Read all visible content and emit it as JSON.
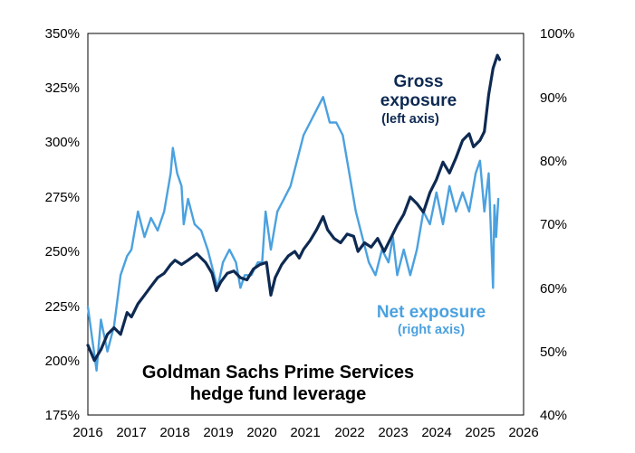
{
  "chart_data": {
    "type": "line",
    "caption": [
      "Goldman Sachs Prime Services",
      "hedge fund leverage"
    ],
    "x_ticks": [
      "2016",
      "2017",
      "2018",
      "2019",
      "2020",
      "2021",
      "2022",
      "2023",
      "2024",
      "2025",
      "2026"
    ],
    "xlim": [
      2016,
      2026
    ],
    "y_left": {
      "ylim": [
        175,
        350
      ],
      "ticks": [
        "175%",
        "200%",
        "225%",
        "250%",
        "275%",
        "300%",
        "325%",
        "350%"
      ],
      "tick_values": [
        175,
        200,
        225,
        250,
        275,
        300,
        325,
        350
      ]
    },
    "y_right": {
      "ylim": [
        40,
        100
      ],
      "ticks": [
        "40%",
        "50%",
        "60%",
        "70%",
        "80%",
        "90%",
        "100%"
      ],
      "tick_values": [
        40,
        50,
        60,
        70,
        80,
        90,
        100
      ]
    },
    "grid": false,
    "legend": "none",
    "series": [
      {
        "name": "Gross exposure",
        "annotation": [
          "Gross",
          "exposure",
          "(left axis)"
        ],
        "axis": "left",
        "color": "#0e2a52",
        "points": [
          [
            2016.0,
            207
          ],
          [
            2016.15,
            200
          ],
          [
            2016.3,
            205
          ],
          [
            2016.45,
            212
          ],
          [
            2016.6,
            215
          ],
          [
            2016.75,
            212
          ],
          [
            2016.9,
            222
          ],
          [
            2017.0,
            220
          ],
          [
            2017.15,
            226
          ],
          [
            2017.3,
            230
          ],
          [
            2017.45,
            234
          ],
          [
            2017.6,
            238
          ],
          [
            2017.75,
            240
          ],
          [
            2017.9,
            244
          ],
          [
            2018.0,
            246
          ],
          [
            2018.15,
            244
          ],
          [
            2018.3,
            246
          ],
          [
            2018.5,
            249
          ],
          [
            2018.7,
            245
          ],
          [
            2018.85,
            240
          ],
          [
            2018.95,
            232
          ],
          [
            2019.05,
            236
          ],
          [
            2019.2,
            240
          ],
          [
            2019.35,
            241
          ],
          [
            2019.5,
            238
          ],
          [
            2019.65,
            237
          ],
          [
            2019.8,
            242
          ],
          [
            2019.95,
            244
          ],
          [
            2020.1,
            245
          ],
          [
            2020.2,
            230
          ],
          [
            2020.3,
            238
          ],
          [
            2020.45,
            244
          ],
          [
            2020.6,
            248
          ],
          [
            2020.75,
            250
          ],
          [
            2020.85,
            247
          ],
          [
            2020.95,
            251
          ],
          [
            2021.1,
            255
          ],
          [
            2021.25,
            260
          ],
          [
            2021.4,
            266
          ],
          [
            2021.5,
            260
          ],
          [
            2021.65,
            256
          ],
          [
            2021.8,
            254
          ],
          [
            2021.95,
            258
          ],
          [
            2022.1,
            257
          ],
          [
            2022.2,
            250
          ],
          [
            2022.35,
            254
          ],
          [
            2022.5,
            252
          ],
          [
            2022.65,
            256
          ],
          [
            2022.8,
            250
          ],
          [
            2022.95,
            256
          ],
          [
            2023.1,
            262
          ],
          [
            2023.25,
            267
          ],
          [
            2023.4,
            275
          ],
          [
            2023.55,
            272
          ],
          [
            2023.7,
            268
          ],
          [
            2023.85,
            277
          ],
          [
            2024.0,
            283
          ],
          [
            2024.15,
            291
          ],
          [
            2024.3,
            286
          ],
          [
            2024.45,
            293
          ],
          [
            2024.6,
            301
          ],
          [
            2024.75,
            304
          ],
          [
            2024.85,
            298
          ],
          [
            2025.0,
            301
          ],
          [
            2025.1,
            305
          ],
          [
            2025.2,
            322
          ],
          [
            2025.3,
            334
          ],
          [
            2025.4,
            340
          ],
          [
            2025.45,
            338
          ]
        ]
      },
      {
        "name": "Net exposure",
        "annotation": [
          "Net exposure",
          "(right axis)"
        ],
        "axis": "right",
        "color": "#4ba1df",
        "points": [
          [
            2016.0,
            57
          ],
          [
            2016.1,
            52
          ],
          [
            2016.2,
            47
          ],
          [
            2016.3,
            55
          ],
          [
            2016.45,
            50
          ],
          [
            2016.6,
            54
          ],
          [
            2016.75,
            62
          ],
          [
            2016.9,
            65
          ],
          [
            2017.0,
            66
          ],
          [
            2017.15,
            72
          ],
          [
            2017.3,
            68
          ],
          [
            2017.45,
            71
          ],
          [
            2017.6,
            69
          ],
          [
            2017.75,
            72
          ],
          [
            2017.9,
            78
          ],
          [
            2017.95,
            82
          ],
          [
            2018.05,
            78
          ],
          [
            2018.15,
            76
          ],
          [
            2018.2,
            70
          ],
          [
            2018.3,
            74
          ],
          [
            2018.45,
            70
          ],
          [
            2018.6,
            69
          ],
          [
            2018.75,
            66
          ],
          [
            2018.9,
            62
          ],
          [
            2018.98,
            60
          ],
          [
            2019.1,
            64
          ],
          [
            2019.25,
            66
          ],
          [
            2019.4,
            64
          ],
          [
            2019.5,
            60
          ],
          [
            2019.6,
            62
          ],
          [
            2019.75,
            62
          ],
          [
            2019.9,
            64
          ],
          [
            2020.0,
            64
          ],
          [
            2020.08,
            72
          ],
          [
            2020.2,
            66
          ],
          [
            2020.35,
            72
          ],
          [
            2020.5,
            74
          ],
          [
            2020.65,
            76
          ],
          [
            2020.8,
            80
          ],
          [
            2020.95,
            84
          ],
          [
            2021.1,
            86
          ],
          [
            2021.25,
            88
          ],
          [
            2021.4,
            90
          ],
          [
            2021.55,
            86
          ],
          [
            2021.7,
            86
          ],
          [
            2021.85,
            84
          ],
          [
            2022.0,
            78
          ],
          [
            2022.15,
            72
          ],
          [
            2022.3,
            68
          ],
          [
            2022.45,
            64
          ],
          [
            2022.6,
            62
          ],
          [
            2022.75,
            66
          ],
          [
            2022.9,
            64
          ],
          [
            2023.0,
            68
          ],
          [
            2023.1,
            62
          ],
          [
            2023.25,
            66
          ],
          [
            2023.4,
            62
          ],
          [
            2023.55,
            66
          ],
          [
            2023.7,
            72
          ],
          [
            2023.85,
            70
          ],
          [
            2024.0,
            75
          ],
          [
            2024.15,
            70
          ],
          [
            2024.3,
            76
          ],
          [
            2024.45,
            72
          ],
          [
            2024.6,
            75
          ],
          [
            2024.75,
            72
          ],
          [
            2024.9,
            78
          ],
          [
            2025.0,
            80
          ],
          [
            2025.1,
            72
          ],
          [
            2025.2,
            78
          ],
          [
            2025.3,
            60
          ],
          [
            2025.33,
            73
          ],
          [
            2025.37,
            68
          ],
          [
            2025.42,
            74
          ]
        ]
      }
    ]
  }
}
